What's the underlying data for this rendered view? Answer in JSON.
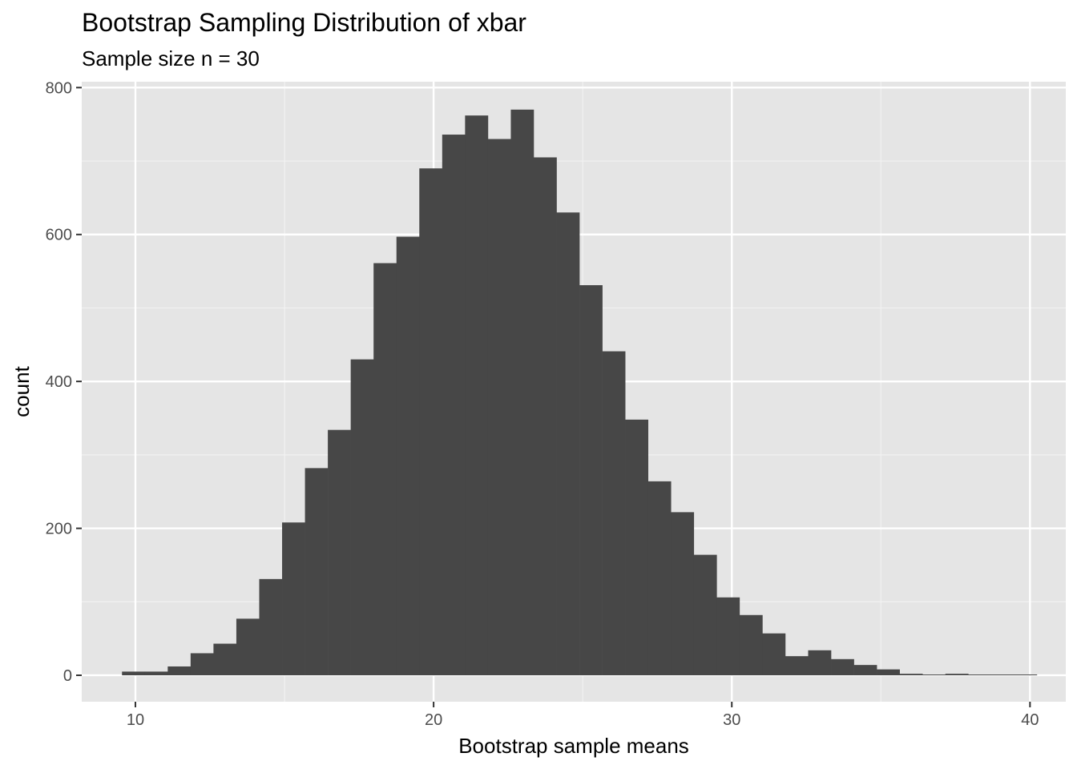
{
  "chart_data": {
    "type": "bar",
    "title": "Bootstrap Sampling Distribution of xbar",
    "subtitle": "Sample size n = 30",
    "xlabel": "Bootstrap sample means",
    "ylabel": "count",
    "xlim": [
      8.2,
      41.2
    ],
    "ylim": [
      -36,
      808
    ],
    "x_ticks": [
      10,
      20,
      30,
      40
    ],
    "y_ticks": [
      0,
      200,
      400,
      600,
      800
    ],
    "grid": true,
    "panel_background": "#e5e5e5",
    "bar_color": "#474747",
    "bins": {
      "start": 9.55,
      "width": 0.767,
      "counts": [
        5,
        5,
        12,
        30,
        43,
        77,
        131,
        208,
        282,
        334,
        430,
        561,
        597,
        690,
        736,
        762,
        730,
        770,
        705,
        630,
        531,
        441,
        348,
        264,
        222,
        164,
        106,
        82,
        57,
        26,
        34,
        22,
        14,
        8,
        2,
        0,
        2,
        0,
        1,
        1
      ]
    }
  }
}
